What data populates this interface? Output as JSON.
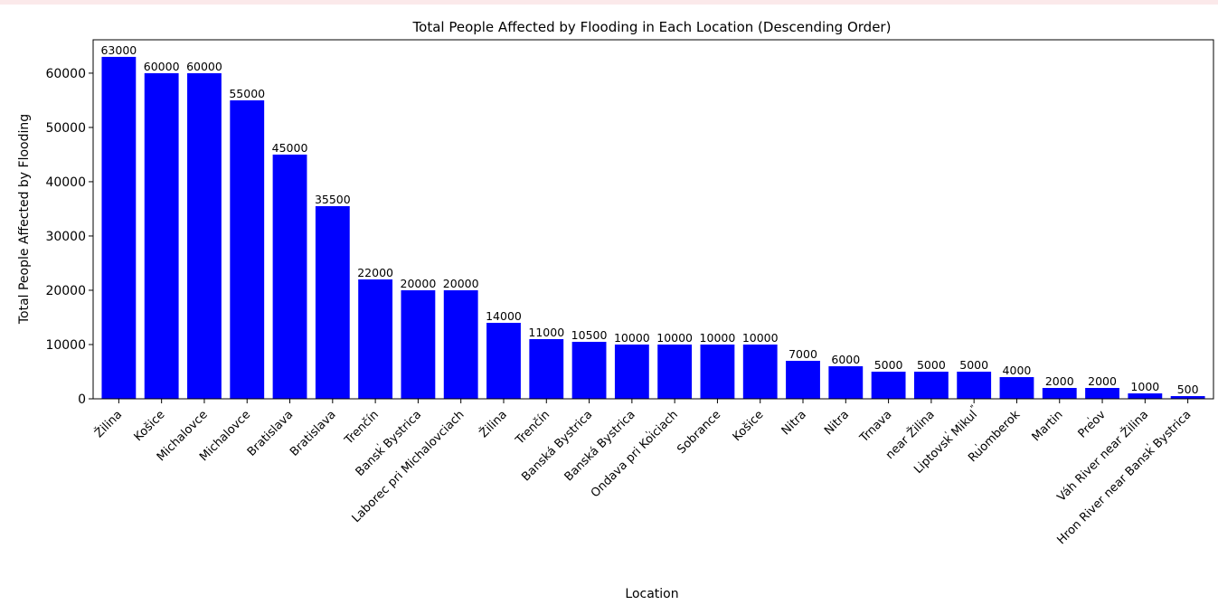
{
  "chart_data": {
    "type": "bar",
    "title": "Total People Affected by Flooding in Each Location (Descending Order)",
    "xlabel": "Location",
    "ylabel": "Total People Affected by Flooding",
    "ylim": [
      0,
      66150
    ],
    "yticks": [
      0,
      10000,
      20000,
      30000,
      40000,
      50000,
      60000
    ],
    "grid": false,
    "bar_color": "#0000ff",
    "categories": [
      "Žilina",
      "Košice",
      "Michalovce",
      "Michalovce",
      "Bratislava",
      "Bratislava",
      "Trenčín",
      "Banskࠠ Bystrica",
      "Laborec pri Michalovciach",
      "Žilina",
      "Trenčín",
      "Banská Bystrica",
      "Banská Bystrica",
      "Ondava pri Koࠠiciach",
      "Sobrance",
      "Košice",
      "Nitra",
      "Nitra",
      "Trnava",
      "near Žilina",
      "Liptovskࠠ Mikulࠠࠠ",
      "Ruࠠomberok",
      "Martin",
      "Preࠠov",
      "Váh River near Žilina",
      "Hron River near Banskࠠ Bystrica"
    ],
    "values": [
      63000,
      60000,
      60000,
      55000,
      45000,
      35500,
      22000,
      20000,
      20000,
      14000,
      11000,
      10500,
      10000,
      10000,
      10000,
      10000,
      7000,
      6000,
      5000,
      5000,
      5000,
      4000,
      2000,
      2000,
      1000,
      500
    ]
  }
}
